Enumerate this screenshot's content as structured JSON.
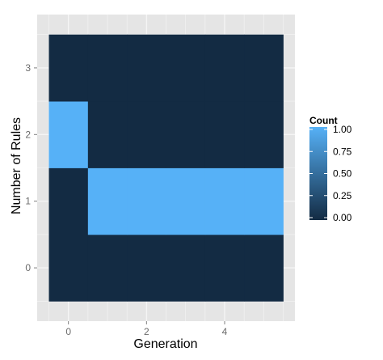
{
  "chart_data": {
    "type": "heatmap",
    "xlabel": "Generation",
    "ylabel": "Number of Rules",
    "x_ticks": [
      0,
      2,
      4
    ],
    "y_ticks": [
      0,
      1,
      2,
      3
    ],
    "xlim": [
      -0.5,
      5.5
    ],
    "ylim": [
      -0.5,
      3.5
    ],
    "x_values": [
      0,
      1,
      2,
      3,
      4,
      5
    ],
    "y_values": [
      0,
      1,
      2,
      3
    ],
    "cells": [
      {
        "x": 0,
        "y": 0,
        "count": 0
      },
      {
        "x": 1,
        "y": 0,
        "count": 0
      },
      {
        "x": 2,
        "y": 0,
        "count": 0
      },
      {
        "x": 3,
        "y": 0,
        "count": 0
      },
      {
        "x": 4,
        "y": 0,
        "count": 0
      },
      {
        "x": 5,
        "y": 0,
        "count": 0
      },
      {
        "x": 0,
        "y": 1,
        "count": 0
      },
      {
        "x": 1,
        "y": 1,
        "count": 1
      },
      {
        "x": 2,
        "y": 1,
        "count": 1
      },
      {
        "x": 3,
        "y": 1,
        "count": 1
      },
      {
        "x": 4,
        "y": 1,
        "count": 1
      },
      {
        "x": 5,
        "y": 1,
        "count": 1
      },
      {
        "x": 0,
        "y": 2,
        "count": 1
      },
      {
        "x": 1,
        "y": 2,
        "count": 0
      },
      {
        "x": 2,
        "y": 2,
        "count": 0
      },
      {
        "x": 3,
        "y": 2,
        "count": 0
      },
      {
        "x": 4,
        "y": 2,
        "count": 0
      },
      {
        "x": 5,
        "y": 2,
        "count": 0
      },
      {
        "x": 0,
        "y": 3,
        "count": 0
      },
      {
        "x": 1,
        "y": 3,
        "count": 0
      },
      {
        "x": 2,
        "y": 3,
        "count": 0
      },
      {
        "x": 3,
        "y": 3,
        "count": 0
      },
      {
        "x": 4,
        "y": 3,
        "count": 0
      },
      {
        "x": 5,
        "y": 3,
        "count": 0
      }
    ],
    "legend": {
      "title": "Count",
      "labels": [
        "1.00",
        "0.75",
        "0.50",
        "0.25",
        "0.00"
      ],
      "values": [
        1.0,
        0.75,
        0.5,
        0.25,
        0.0
      ],
      "placement": "right"
    },
    "colors": {
      "low": "#132B43",
      "high": "#56B1F7",
      "panel_background": "#E5E5E5",
      "gridline": "#F5F5F5"
    },
    "grid": true
  }
}
